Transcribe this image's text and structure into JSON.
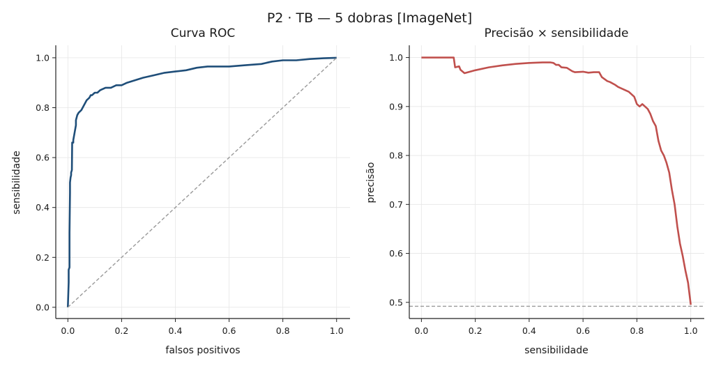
{
  "figure": {
    "title": "P2 · TB — 5 dobras [ImageNet]"
  },
  "chart_data": [
    {
      "type": "line",
      "title": "Curva ROC",
      "xlabel": "falsos positivos",
      "ylabel": "sensibilidade",
      "xlim": [
        -0.045,
        1.05
      ],
      "ylim": [
        -0.045,
        1.05
      ],
      "xticks": [
        "0.0",
        "0.2",
        "0.4",
        "0.6",
        "0.8",
        "1.0"
      ],
      "xtick_values": [
        0,
        0.2,
        0.4,
        0.6,
        0.8,
        1.0
      ],
      "yticks": [
        "0.0",
        "0.2",
        "0.4",
        "0.6",
        "0.8",
        "1.0"
      ],
      "ytick_values": [
        0,
        0.2,
        0.4,
        0.6,
        0.8,
        1.0
      ],
      "grid": true,
      "series": [
        {
          "color": "#1f4e79",
          "style": "solid",
          "x": [
            0.0,
            0.003,
            0.003,
            0.006,
            0.006,
            0.008,
            0.008,
            0.01,
            0.012,
            0.012,
            0.015,
            0.016,
            0.02,
            0.02,
            0.025,
            0.03,
            0.03,
            0.035,
            0.04,
            0.05,
            0.06,
            0.07,
            0.08,
            0.085,
            0.09,
            0.1,
            0.11,
            0.12,
            0.14,
            0.16,
            0.18,
            0.2,
            0.22,
            0.25,
            0.28,
            0.32,
            0.36,
            0.4,
            0.44,
            0.48,
            0.52,
            0.6,
            0.66,
            0.72,
            0.76,
            0.8,
            0.85,
            0.9,
            0.95,
            1.0
          ],
          "y": [
            0.0,
            0.1,
            0.15,
            0.16,
            0.3,
            0.46,
            0.5,
            0.52,
            0.53,
            0.54,
            0.55,
            0.66,
            0.66,
            0.67,
            0.7,
            0.73,
            0.75,
            0.77,
            0.78,
            0.79,
            0.81,
            0.83,
            0.84,
            0.85,
            0.85,
            0.86,
            0.86,
            0.87,
            0.88,
            0.88,
            0.89,
            0.89,
            0.9,
            0.91,
            0.92,
            0.93,
            0.94,
            0.945,
            0.95,
            0.96,
            0.965,
            0.965,
            0.97,
            0.975,
            0.985,
            0.99,
            0.99,
            0.995,
            0.998,
            1.0
          ]
        },
        {
          "color": "#999999",
          "style": "dashed",
          "x": [
            0,
            1
          ],
          "y": [
            0,
            1
          ]
        }
      ]
    },
    {
      "type": "line",
      "title": "Precisão × sensibilidade",
      "xlabel": "sensibilidade",
      "ylabel": "precisão",
      "xlim": [
        -0.045,
        1.05
      ],
      "ylim": [
        0.467,
        1.025
      ],
      "xticks": [
        "0.0",
        "0.2",
        "0.4",
        "0.6",
        "0.8",
        "1.0"
      ],
      "xtick_values": [
        0,
        0.2,
        0.4,
        0.6,
        0.8,
        1.0
      ],
      "yticks": [
        "0.5",
        "0.6",
        "0.7",
        "0.8",
        "0.9",
        "1.0"
      ],
      "ytick_values": [
        0.5,
        0.6,
        0.7,
        0.8,
        0.9,
        1.0
      ],
      "grid": true,
      "series": [
        {
          "color": "#c0504d",
          "style": "solid",
          "x": [
            0.0,
            0.12,
            0.125,
            0.14,
            0.145,
            0.16,
            0.2,
            0.25,
            0.3,
            0.35,
            0.4,
            0.45,
            0.48,
            0.49,
            0.5,
            0.51,
            0.52,
            0.54,
            0.56,
            0.57,
            0.6,
            0.62,
            0.64,
            0.66,
            0.67,
            0.69,
            0.7,
            0.72,
            0.73,
            0.75,
            0.77,
            0.79,
            0.8,
            0.81,
            0.82,
            0.84,
            0.85,
            0.86,
            0.87,
            0.88,
            0.89,
            0.9,
            0.91,
            0.92,
            0.93,
            0.94,
            0.95,
            0.96,
            0.97,
            0.98,
            0.99,
            1.0
          ],
          "y": [
            1.0,
            1.0,
            0.98,
            0.982,
            0.975,
            0.968,
            0.974,
            0.98,
            0.984,
            0.987,
            0.989,
            0.99,
            0.99,
            0.989,
            0.985,
            0.985,
            0.98,
            0.979,
            0.972,
            0.97,
            0.971,
            0.969,
            0.97,
            0.97,
            0.96,
            0.952,
            0.95,
            0.944,
            0.94,
            0.935,
            0.93,
            0.92,
            0.905,
            0.9,
            0.905,
            0.895,
            0.885,
            0.87,
            0.86,
            0.83,
            0.81,
            0.8,
            0.785,
            0.765,
            0.73,
            0.7,
            0.655,
            0.62,
            0.595,
            0.565,
            0.54,
            0.495
          ]
        },
        {
          "color": "#999999",
          "style": "dashed",
          "x": [
            -0.045,
            1.05
          ],
          "y": [
            0.492,
            0.492
          ]
        }
      ]
    }
  ]
}
